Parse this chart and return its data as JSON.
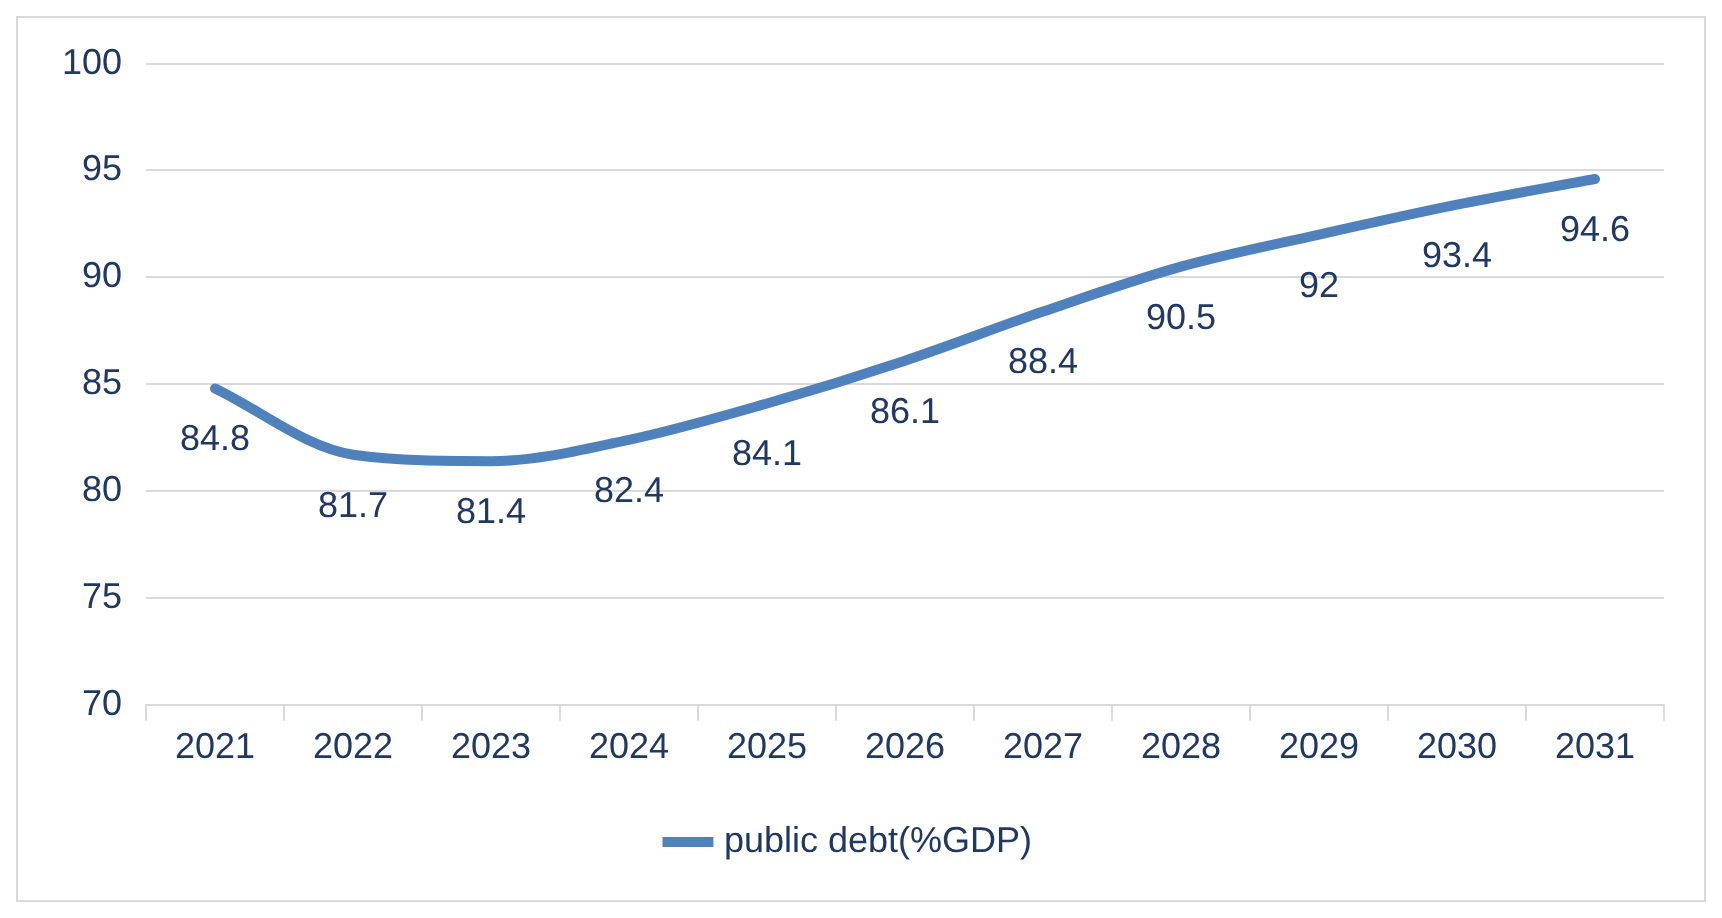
{
  "chart_data": {
    "type": "line",
    "categories": [
      "2021",
      "2022",
      "2023",
      "2024",
      "2025",
      "2026",
      "2027",
      "2028",
      "2029",
      "2030",
      "2031"
    ],
    "series": [
      {
        "name": "public debt(%GDP)",
        "color": "#4f81bd",
        "values": [
          84.8,
          81.7,
          81.4,
          82.4,
          84.1,
          86.1,
          88.4,
          90.5,
          92,
          93.4,
          94.6
        ]
      }
    ],
    "ylim": [
      70,
      100
    ],
    "yticks": [
      70,
      75,
      80,
      85,
      90,
      95,
      100
    ],
    "grid": "y",
    "legend": "bottom",
    "data_labels": true
  }
}
